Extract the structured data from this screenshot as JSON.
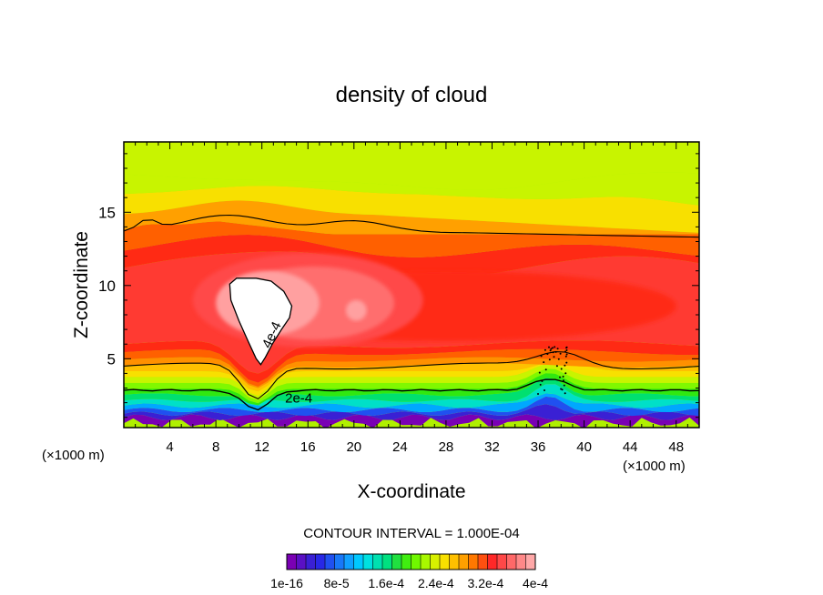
{
  "chart_data": {
    "type": "heatmap",
    "title": "density of cloud",
    "xlabel": "X-coordinate",
    "ylabel": "Z-coordinate",
    "x_unit_left": "(×1000 m)",
    "x_unit_right": "(×1000 m)",
    "xlim": [
      0,
      50
    ],
    "ylim": [
      0.3,
      19.8
    ],
    "x_ticks": [
      4,
      8,
      12,
      16,
      20,
      24,
      28,
      32,
      36,
      40,
      44,
      48
    ],
    "y_ticks": [
      5,
      10,
      15
    ],
    "contour_interval_text": "CONTOUR INTERVAL = 1.000E-04",
    "contour_labels": [
      {
        "text": "4e-4",
        "x": 13.2,
        "z": 6.5
      },
      {
        "text": "2e-4",
        "x": 15.2,
        "z": 2.0
      }
    ],
    "colorbar": {
      "labels": [
        "1e-16",
        "8e-5",
        "1.6e-4",
        "2.4e-4",
        "3.2e-4",
        "4e-4"
      ],
      "colors": [
        "#7a00b4",
        "#5a10c4",
        "#3a20d4",
        "#2828e6",
        "#2050f0",
        "#1878f8",
        "#10a0ff",
        "#00c8ff",
        "#00e0e0",
        "#00e0b0",
        "#00e080",
        "#20e040",
        "#40ee10",
        "#70f800",
        "#a8f800",
        "#d8f000",
        "#f8e000",
        "#ffc000",
        "#ffa000",
        "#ff7800",
        "#ff5010",
        "#ff2828",
        "#ff4848",
        "#ff6868",
        "#ff8888",
        "#ffa8a8"
      ]
    }
  }
}
